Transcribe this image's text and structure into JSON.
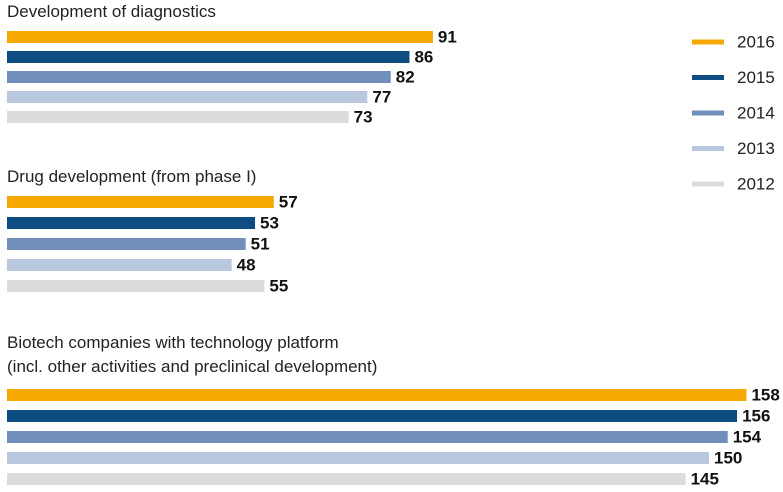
{
  "chart_data": {
    "type": "grouped-horizontal-bar",
    "categories": [
      "Development of diagnostics",
      "Drug development (from phase I)",
      "Biotech companies with technology platform\n(incl. other activities and preclinical development)"
    ],
    "series": [
      {
        "name": "2016",
        "color": "#f5a800",
        "values": [
          91,
          57,
          158
        ]
      },
      {
        "name": "2015",
        "color": "#0f4c81",
        "values": [
          86,
          53,
          156
        ]
      },
      {
        "name": "2014",
        "color": "#7090bb",
        "values": [
          82,
          51,
          154
        ]
      },
      {
        "name": "2013",
        "color": "#b9c8de",
        "values": [
          77,
          48,
          150
        ]
      },
      {
        "name": "2012",
        "color": "#dcdcdc",
        "values": [
          73,
          55,
          145
        ]
      }
    ],
    "legend": "right"
  }
}
